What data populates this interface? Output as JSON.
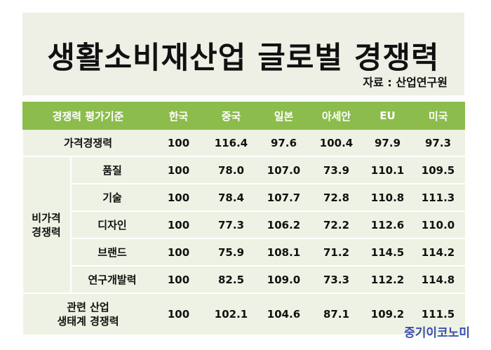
{
  "title": "생활소비재산업 글로벌 경쟁력",
  "source": "자료 : 산업연구원",
  "table": {
    "headers": [
      "경쟁력 평가기준",
      "한국",
      "중국",
      "일본",
      "아세안",
      "EU",
      "미국"
    ],
    "rows": [
      {
        "label": "가격경쟁력",
        "values": [
          "100",
          "116.4",
          "97.6",
          "100.4",
          "97.9",
          "97.3"
        ]
      }
    ],
    "group_label": "비가격\n경쟁력",
    "group_rows": [
      {
        "label": "품질",
        "values": [
          "100",
          "78.0",
          "107.0",
          "73.9",
          "110.1",
          "109.5"
        ]
      },
      {
        "label": "기술",
        "values": [
          "100",
          "78.4",
          "107.7",
          "72.8",
          "110.8",
          "111.3"
        ]
      },
      {
        "label": "디자인",
        "values": [
          "100",
          "77.3",
          "106.2",
          "72.2",
          "112.6",
          "110.0"
        ]
      },
      {
        "label": "브랜드",
        "values": [
          "100",
          "75.9",
          "108.1",
          "71.2",
          "114.5",
          "114.2"
        ]
      },
      {
        "label": "연구개발력",
        "values": [
          "100",
          "82.5",
          "109.0",
          "73.3",
          "112.2",
          "114.8"
        ]
      }
    ],
    "last_row": {
      "label": "관련 산업\n생태계 경쟁력",
      "values": [
        "100",
        "102.1",
        "104.6",
        "87.1",
        "109.2",
        "111.5"
      ]
    }
  },
  "logo": "중기이코노미"
}
